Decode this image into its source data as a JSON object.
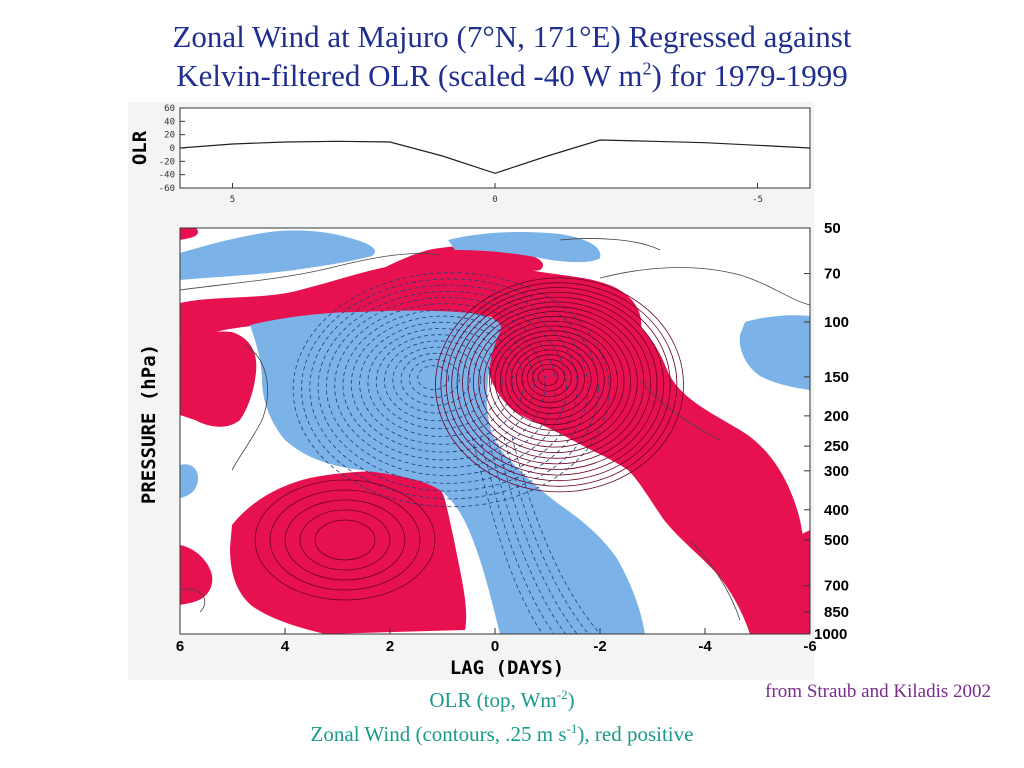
{
  "title": {
    "line1": "Zonal Wind at Majuro (7°N, 171°E) Regressed against",
    "line2_a": "Kelvin-filtered OLR (scaled -40 W m",
    "line2_sup": "2",
    "line2_b": ") for 1979-1999"
  },
  "caption": {
    "line1_a": "OLR (top, Wm",
    "line1_sup": "-2",
    "line1_b": ")",
    "line2_a": "Zonal Wind (contours, .25 m s",
    "line2_sup": "-1",
    "line2_b": "), red positive"
  },
  "credit": "from Straub and Kiladis 2002",
  "colors": {
    "positive": "#e8114f",
    "negative": "#7bb3e8",
    "title": "#1f2f8f",
    "caption": "#1a9a8a",
    "credit": "#7a2a8a"
  },
  "chart_data": [
    {
      "type": "line",
      "ylabel": "OLR",
      "ylim": [
        -60,
        60
      ],
      "yticks": [
        "60",
        "40",
        "20",
        "0",
        "-20",
        "-40",
        "-60"
      ],
      "xlim": [
        6,
        -6
      ],
      "xticks": [
        "5",
        "0",
        "-5"
      ],
      "series": [
        {
          "x": [
            6,
            5,
            4,
            3,
            2,
            1,
            0,
            -1,
            -2,
            -3,
            -4,
            -5,
            -6
          ],
          "values": [
            0,
            6,
            9,
            10,
            9,
            -12,
            -38,
            -12,
            12,
            10,
            8,
            4,
            0
          ]
        }
      ]
    },
    {
      "type": "contour",
      "xlabel": "LAG (DAYS)",
      "ylabel": "PRESSURE (hPa)",
      "xlim": [
        6,
        -6
      ],
      "xticks": [
        "6",
        "4",
        "2",
        "0",
        "-2",
        "-4",
        "-6"
      ],
      "yticks": [
        "50",
        "70",
        "100",
        "150",
        "200",
        "250",
        "300",
        "400",
        "500",
        "700",
        "850",
        "1000"
      ],
      "contour_interval": 0.25,
      "fill": {
        "positive": "red",
        "negative": "blue"
      },
      "negative_center": {
        "lag": 1.2,
        "pressure": 150
      },
      "positive_center": {
        "lag": -1.0,
        "pressure": 150
      }
    }
  ]
}
